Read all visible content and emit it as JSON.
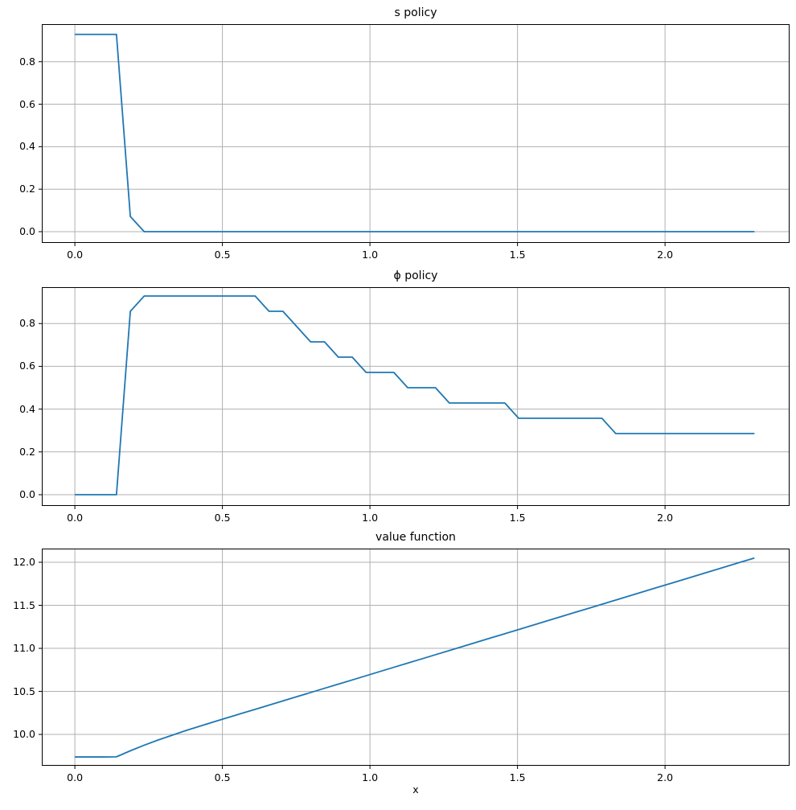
{
  "figure": {
    "background": "#ffffff",
    "line_color": "#1f77b4",
    "grid_color": "#b0b0b0",
    "spine_color": "#000000"
  },
  "chart_data": [
    {
      "type": "line",
      "title": "s policy",
      "xlabel": "",
      "ylabel": "",
      "legend": null,
      "grid": true,
      "line_color": "#1f77b4",
      "xlim": [
        -0.112,
        2.422
      ],
      "ylim": [
        -0.053,
        0.977
      ],
      "xticks": [
        0.0,
        0.5,
        1.0,
        1.5,
        2.0
      ],
      "xtick_labels": [
        "0.0",
        "0.5",
        "1.0",
        "1.5",
        "2.0"
      ],
      "yticks": [
        0.0,
        0.2,
        0.4,
        0.6,
        0.8
      ],
      "ytick_labels": [
        "0.0",
        "0.2",
        "0.4",
        "0.6",
        "0.8"
      ],
      "x": [
        0.0,
        0.047,
        0.094,
        0.141,
        0.188,
        0.235,
        0.282,
        0.329,
        0.376,
        0.423,
        0.47,
        0.517,
        0.564,
        0.611,
        0.658,
        0.705,
        0.752,
        0.799,
        0.846,
        0.893,
        0.94,
        0.987,
        1.034,
        1.081,
        1.128,
        1.175,
        1.222,
        1.269,
        1.316,
        1.363,
        1.41,
        1.457,
        1.504,
        1.551,
        1.598,
        1.645,
        1.692,
        1.739,
        1.786,
        1.833,
        1.88,
        1.927,
        1.974,
        2.021,
        2.068,
        2.115,
        2.162,
        2.209,
        2.256,
        2.303
      ],
      "y": [
        0.9286,
        0.9286,
        0.9286,
        0.9286,
        0.0714,
        0.0,
        0.0,
        0.0,
        0.0,
        0.0,
        0.0,
        0.0,
        0.0,
        0.0,
        0.0,
        0.0,
        0.0,
        0.0,
        0.0,
        0.0,
        0.0,
        0.0,
        0.0,
        0.0,
        0.0,
        0.0,
        0.0,
        0.0,
        0.0,
        0.0,
        0.0,
        0.0,
        0.0,
        0.0,
        0.0,
        0.0,
        0.0,
        0.0,
        0.0,
        0.0,
        0.0,
        0.0,
        0.0,
        0.0,
        0.0,
        0.0,
        0.0,
        0.0,
        0.0,
        0.0
      ]
    },
    {
      "type": "line",
      "title": "ϕ policy",
      "xlabel": "",
      "ylabel": "",
      "legend": null,
      "grid": true,
      "line_color": "#1f77b4",
      "xlim": [
        -0.112,
        2.422
      ],
      "ylim": [
        -0.0526,
        0.97
      ],
      "xticks": [
        0.0,
        0.5,
        1.0,
        1.5,
        2.0
      ],
      "xtick_labels": [
        "0.0",
        "0.5",
        "1.0",
        "1.5",
        "2.0"
      ],
      "yticks": [
        0.0,
        0.2,
        0.4,
        0.6,
        0.8
      ],
      "ytick_labels": [
        "0.0",
        "0.2",
        "0.4",
        "0.6",
        "0.8"
      ],
      "x": [
        0.0,
        0.047,
        0.094,
        0.141,
        0.188,
        0.235,
        0.282,
        0.329,
        0.376,
        0.423,
        0.47,
        0.517,
        0.564,
        0.611,
        0.658,
        0.705,
        0.752,
        0.799,
        0.846,
        0.893,
        0.94,
        0.987,
        1.034,
        1.081,
        1.128,
        1.175,
        1.222,
        1.269,
        1.316,
        1.363,
        1.41,
        1.457,
        1.504,
        1.551,
        1.598,
        1.645,
        1.692,
        1.739,
        1.786,
        1.833,
        1.88,
        1.927,
        1.974,
        2.021,
        2.068,
        2.115,
        2.162,
        2.209,
        2.256,
        2.303
      ],
      "y": [
        0.0,
        0.0,
        0.0,
        0.0,
        0.8571,
        0.9286,
        0.9286,
        0.9286,
        0.9286,
        0.9286,
        0.9286,
        0.9286,
        0.9286,
        0.9286,
        0.8571,
        0.8571,
        0.7857,
        0.7143,
        0.7143,
        0.6429,
        0.6429,
        0.5714,
        0.5714,
        0.5714,
        0.5,
        0.5,
        0.5,
        0.4286,
        0.4286,
        0.4286,
        0.4286,
        0.4286,
        0.3571,
        0.3571,
        0.3571,
        0.3571,
        0.3571,
        0.3571,
        0.3571,
        0.2857,
        0.2857,
        0.2857,
        0.2857,
        0.2857,
        0.2857,
        0.2857,
        0.2857,
        0.2857,
        0.2857,
        0.2857
      ]
    },
    {
      "type": "line",
      "title": "value function",
      "xlabel": "x",
      "ylabel": "",
      "legend": null,
      "grid": true,
      "line_color": "#1f77b4",
      "xlim": [
        -0.112,
        2.422
      ],
      "ylim": [
        9.636,
        12.159
      ],
      "xticks": [
        0.0,
        0.5,
        1.0,
        1.5,
        2.0
      ],
      "xtick_labels": [
        "0.0",
        "0.5",
        "1.0",
        "1.5",
        "2.0"
      ],
      "yticks": [
        10.0,
        10.5,
        11.0,
        11.5,
        12.0
      ],
      "ytick_labels": [
        "10.0",
        "10.5",
        "11.0",
        "11.5",
        "12.0"
      ],
      "x": [
        0.0,
        0.047,
        0.094,
        0.141,
        0.188,
        0.235,
        0.282,
        0.329,
        0.376,
        0.423,
        0.47,
        0.517,
        0.564,
        0.611,
        0.658,
        0.705,
        0.752,
        0.799,
        0.846,
        0.893,
        0.94,
        0.987,
        1.034,
        1.081,
        1.128,
        1.175,
        1.222,
        1.269,
        1.316,
        1.363,
        1.41,
        1.457,
        1.504,
        1.551,
        1.598,
        1.645,
        1.692,
        1.739,
        1.786,
        1.833,
        1.88,
        1.927,
        1.974,
        2.021,
        2.068,
        2.115,
        2.162,
        2.209,
        2.256,
        2.303
      ],
      "y": [
        9.738,
        9.738,
        9.738,
        9.74,
        9.81,
        9.875,
        9.935,
        9.99,
        10.045,
        10.095,
        10.145,
        10.194,
        10.243,
        10.291,
        10.34,
        10.389,
        10.438,
        10.487,
        10.536,
        10.584,
        10.633,
        10.682,
        10.731,
        10.78,
        10.829,
        10.877,
        10.926,
        10.975,
        11.024,
        11.073,
        11.122,
        11.17,
        11.219,
        11.268,
        11.317,
        11.366,
        11.415,
        11.463,
        11.512,
        11.561,
        11.61,
        11.659,
        11.708,
        11.756,
        11.805,
        11.854,
        11.903,
        11.952,
        12.001,
        12.049
      ]
    }
  ]
}
